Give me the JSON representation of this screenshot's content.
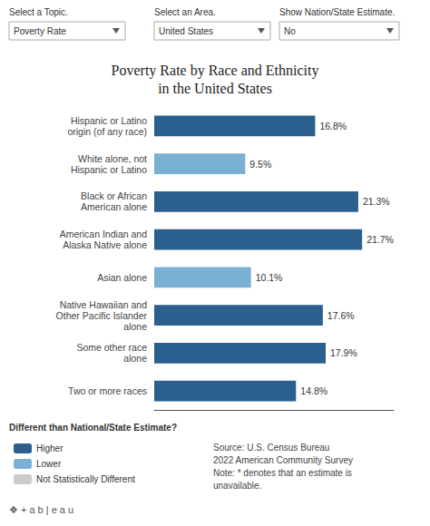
{
  "chart_data": {
    "type": "bar",
    "orientation": "horizontal",
    "title": "Poverty Rate by Race and Ethnicity\nin the United States",
    "categories": [
      "Hispanic or Latino\norigin (of any race)",
      "White alone, not\nHispanic or Latino",
      "Black or African\nAmerican alone",
      "American Indian and\nAlaska Native alone",
      "Asian alone",
      "Native Hawaiian and\nOther Pacific Islander\nalone",
      "Some other race\nalone",
      "Two or more races"
    ],
    "series": [
      {
        "name": "Higher",
        "color": "#2b5f8e",
        "values": [
          16.8,
          null,
          21.3,
          21.7,
          null,
          17.6,
          17.9,
          14.8
        ],
        "value_labels": [
          "16.8%",
          null,
          "21.3%",
          "21.7%",
          null,
          "17.6%",
          "17.9%",
          "14.8%"
        ]
      },
      {
        "name": "Lower",
        "color": "#7ab0d4",
        "values": [
          null,
          9.5,
          null,
          null,
          10.1,
          null,
          null,
          null
        ],
        "value_labels": [
          null,
          "9.5%",
          null,
          null,
          "10.1%",
          null,
          null,
          null
        ]
      },
      {
        "name": "Not Statistically Different",
        "color": "#cccccc",
        "values": [
          null,
          null,
          null,
          null,
          null,
          null,
          null,
          null
        ],
        "value_labels": [
          null,
          null,
          null,
          null,
          null,
          null,
          null,
          null
        ]
      }
    ],
    "stacked": true,
    "data_labels": true,
    "xlim": [
      0,
      25
    ],
    "grid": false,
    "tick_labels": "y",
    "legend": "bottom",
    "annotations": [
      "Select a Topic.",
      "Poverty Rate",
      "Select an Area.",
      "United States",
      "Show Nation/State Estimate.",
      "No",
      "Different than National/State Estimate?",
      "Source: U.S. Census Bureau\n2022 American Community Survey\nNote: * denotes that an estimate is\nunavailable.",
      "❖ + a b | e a u"
    ]
  }
}
